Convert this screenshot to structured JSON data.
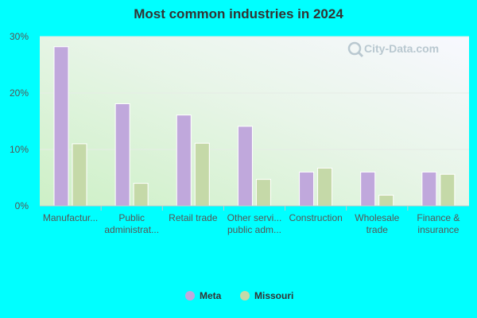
{
  "chart_data": {
    "type": "bar",
    "title": "Most common industries in 2024",
    "categories": [
      [
        "Manufactur..."
      ],
      [
        "Public",
        "administrat..."
      ],
      [
        "Retail trade"
      ],
      [
        "Other servi...",
        "public adm..."
      ],
      [
        "Construction"
      ],
      [
        "Wholesale",
        "trade"
      ],
      [
        "Finance &",
        "insurance"
      ]
    ],
    "series": [
      {
        "name": "Meta",
        "color": "#c0a8dc",
        "values": [
          28.2,
          18.1,
          16.1,
          14.1,
          6.0,
          6.0,
          6.0
        ]
      },
      {
        "name": "Missouri",
        "color": "#c5d9a8",
        "values": [
          11.0,
          4.0,
          11.1,
          4.7,
          6.7,
          1.9,
          5.6
        ]
      }
    ],
    "ylim": [
      0,
      30
    ],
    "yticks": [
      {
        "value": 0,
        "label": "0%"
      },
      {
        "value": 10,
        "label": "10%"
      },
      {
        "value": 20,
        "label": "20%"
      },
      {
        "value": 30,
        "label": "30%"
      }
    ],
    "grid": true,
    "legend_position": "bottom"
  },
  "watermark": "City-Data.com"
}
